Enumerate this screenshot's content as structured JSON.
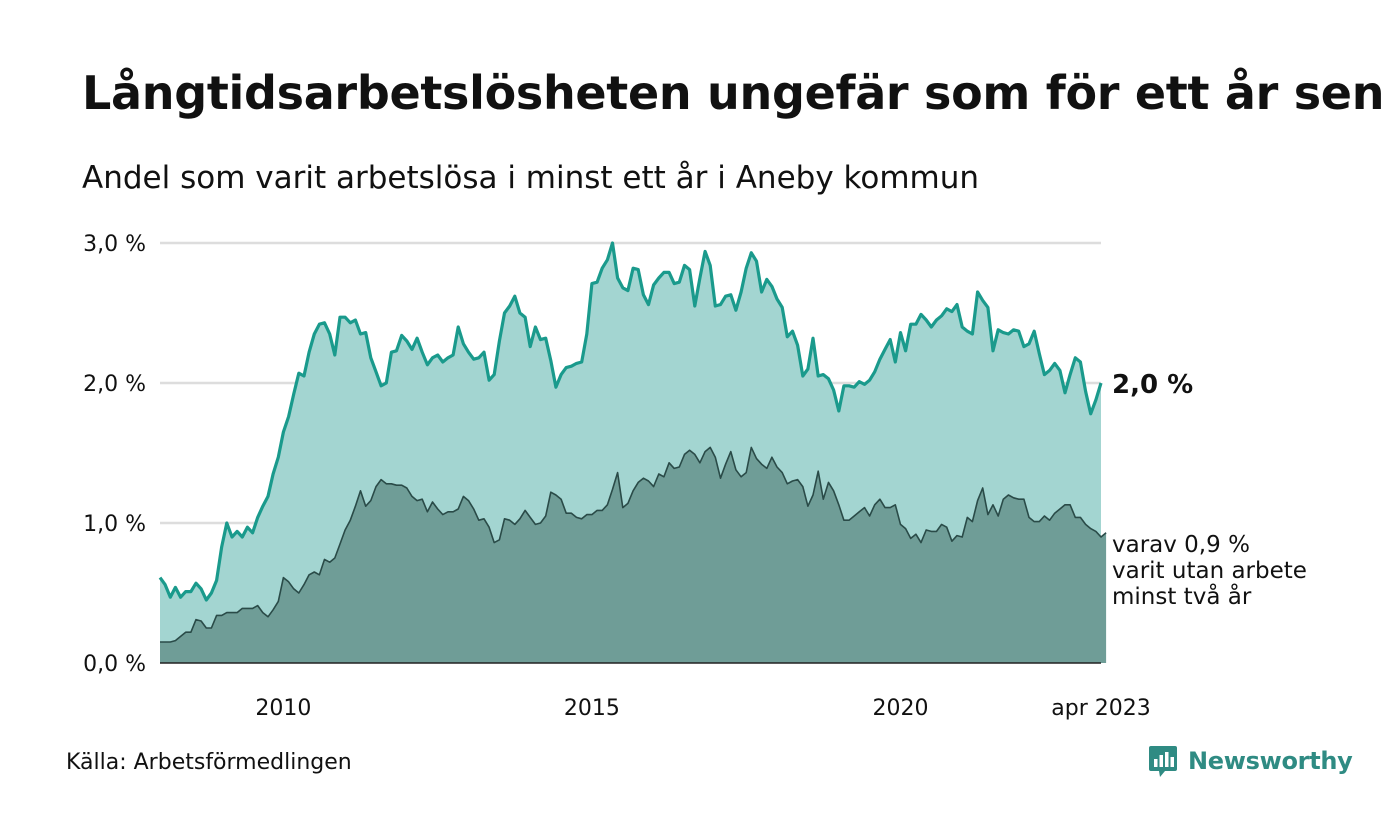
{
  "header": {
    "title": "Långtidsarbetslösheten ungefär som för ett år sen",
    "subtitle": "Andel som varit arbetslösa i minst ett år i Aneby kommun"
  },
  "footer": {
    "source": "Källa: Arbetsförmedlingen",
    "brand": "Newsworthy"
  },
  "colors": {
    "main_line": "#1a9a8c",
    "main_fill": "#a3d5d1",
    "sub_line": "#2a4b48",
    "sub_fill": "#6f9d97",
    "grid": "#dddddd",
    "brand": "#2f8b83"
  },
  "chart_data": {
    "type": "area",
    "x_start": "2008-01",
    "x_end": "2023-04",
    "x_step": "month",
    "xtick_labels": [
      "2010",
      "2015",
      "2020",
      "apr 2023"
    ],
    "ytick_labels": [
      "0,0 %",
      "1,0 %",
      "2,0 %",
      "3,0 %"
    ],
    "ylim": [
      0,
      3
    ],
    "grid": true,
    "series": [
      {
        "key": "main",
        "end_label": "2,0 %",
        "values": [
          0.61,
          0.56,
          0.47,
          0.54,
          0.47,
          0.51,
          0.51,
          0.57,
          0.53,
          0.45,
          0.5,
          0.59,
          0.83,
          1.0,
          0.9,
          0.94,
          0.9,
          0.97,
          0.93,
          1.04,
          1.12,
          1.19,
          1.35,
          1.47,
          1.65,
          1.76,
          1.92,
          2.07,
          2.05,
          2.22,
          2.35,
          2.42,
          2.43,
          2.35,
          2.2,
          2.47,
          2.47,
          2.43,
          2.45,
          2.35,
          2.36,
          2.18,
          2.08,
          1.98,
          2.0,
          2.22,
          2.23,
          2.34,
          2.3,
          2.24,
          2.32,
          2.22,
          2.13,
          2.18,
          2.2,
          2.15,
          2.18,
          2.2,
          2.4,
          2.28,
          2.22,
          2.17,
          2.18,
          2.22,
          2.02,
          2.06,
          2.3,
          2.5,
          2.55,
          2.62,
          2.5,
          2.47,
          2.26,
          2.4,
          2.31,
          2.32,
          2.16,
          1.97,
          2.06,
          2.11,
          2.12,
          2.14,
          2.15,
          2.35,
          2.71,
          2.72,
          2.82,
          2.88,
          3.0,
          2.75,
          2.68,
          2.66,
          2.82,
          2.81,
          2.63,
          2.56,
          2.7,
          2.75,
          2.79,
          2.79,
          2.71,
          2.72,
          2.84,
          2.81,
          2.55,
          2.75,
          2.94,
          2.84,
          2.55,
          2.56,
          2.62,
          2.63,
          2.52,
          2.65,
          2.82,
          2.93,
          2.87,
          2.65,
          2.74,
          2.69,
          2.6,
          2.54,
          2.33,
          2.37,
          2.27,
          2.05,
          2.1,
          2.32,
          2.05,
          2.06,
          2.03,
          1.95,
          1.8,
          1.98,
          1.98,
          1.97,
          2.01,
          1.99,
          2.02,
          2.08,
          2.17,
          2.24,
          2.31,
          2.15,
          2.36,
          2.23,
          2.42,
          2.42,
          2.49,
          2.45,
          2.4,
          2.45,
          2.48,
          2.53,
          2.51,
          2.56,
          2.4,
          2.37,
          2.35,
          2.65,
          2.59,
          2.54,
          2.23,
          2.38,
          2.36,
          2.35,
          2.38,
          2.37,
          2.26,
          2.28,
          2.37,
          2.21,
          2.06,
          2.09,
          2.14,
          2.09,
          1.93,
          2.06,
          2.18,
          2.15,
          1.94,
          1.78,
          1.88,
          2.0
        ]
      },
      {
        "key": "sub",
        "end_label_lines": [
          "varav 0,9 %",
          "varit utan arbete",
          "minst två år"
        ],
        "values": [
          0.15,
          0.15,
          0.15,
          0.16,
          0.19,
          0.22,
          0.22,
          0.31,
          0.3,
          0.25,
          0.25,
          0.34,
          0.34,
          0.36,
          0.36,
          0.36,
          0.39,
          0.39,
          0.39,
          0.41,
          0.36,
          0.33,
          0.38,
          0.44,
          0.61,
          0.58,
          0.53,
          0.5,
          0.56,
          0.63,
          0.65,
          0.63,
          0.74,
          0.72,
          0.75,
          0.85,
          0.95,
          1.02,
          1.12,
          1.23,
          1.12,
          1.16,
          1.26,
          1.31,
          1.28,
          1.28,
          1.27,
          1.27,
          1.25,
          1.19,
          1.16,
          1.17,
          1.08,
          1.15,
          1.1,
          1.06,
          1.08,
          1.08,
          1.1,
          1.19,
          1.16,
          1.1,
          1.02,
          1.03,
          0.97,
          0.86,
          0.88,
          1.03,
          1.02,
          0.99,
          1.03,
          1.09,
          1.04,
          0.99,
          1.0,
          1.05,
          1.22,
          1.2,
          1.17,
          1.07,
          1.07,
          1.04,
          1.03,
          1.06,
          1.06,
          1.09,
          1.09,
          1.13,
          1.24,
          1.36,
          1.11,
          1.14,
          1.23,
          1.29,
          1.32,
          1.3,
          1.26,
          1.35,
          1.33,
          1.43,
          1.39,
          1.4,
          1.49,
          1.52,
          1.49,
          1.43,
          1.51,
          1.54,
          1.47,
          1.32,
          1.42,
          1.51,
          1.38,
          1.33,
          1.36,
          1.54,
          1.46,
          1.42,
          1.39,
          1.47,
          1.4,
          1.36,
          1.28,
          1.3,
          1.31,
          1.26,
          1.12,
          1.2,
          1.37,
          1.17,
          1.29,
          1.23,
          1.13,
          1.02,
          1.02,
          1.05,
          1.08,
          1.11,
          1.05,
          1.13,
          1.17,
          1.11,
          1.11,
          1.13,
          0.99,
          0.96,
          0.89,
          0.92,
          0.86,
          0.95,
          0.94,
          0.94,
          0.99,
          0.97,
          0.87,
          0.91,
          0.9,
          1.04,
          1.01,
          1.16,
          1.25,
          1.06,
          1.13,
          1.05,
          1.17,
          1.2,
          1.18,
          1.17,
          1.17,
          1.04,
          1.01,
          1.01,
          1.05,
          1.02,
          1.07,
          1.1,
          1.13,
          1.13,
          1.04,
          1.04,
          0.99,
          0.96,
          0.94,
          0.9,
          0.93
        ]
      }
    ]
  }
}
